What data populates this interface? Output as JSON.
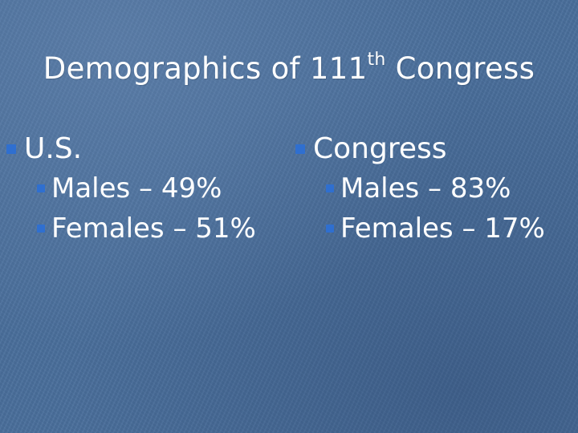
{
  "slide": {
    "title_prefix": "Demographics of 111",
    "title_sup": "th",
    "title_suffix": " Congress",
    "bullet_color": "#2f6fd0",
    "columns": [
      {
        "heading": "U.S.",
        "items": [
          {
            "text": "Males – 49%"
          },
          {
            "text": "Females – 51%"
          }
        ]
      },
      {
        "heading": "Congress",
        "items": [
          {
            "text": "Males – 83%"
          },
          {
            "text": "Females – 17%"
          }
        ]
      }
    ]
  }
}
